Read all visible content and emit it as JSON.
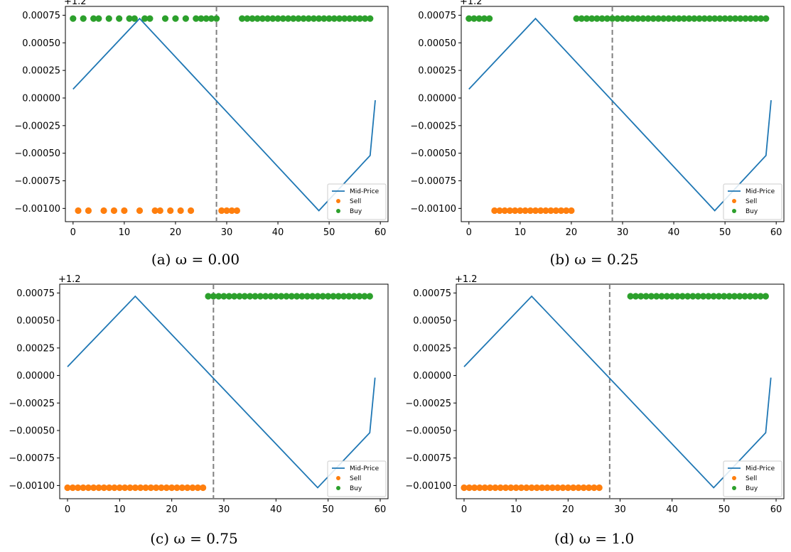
{
  "chart_data": [
    {
      "type": "line",
      "caption": "(a) ω = 0.00",
      "offset_label": "+1.2",
      "xlim": [
        -1.5,
        61.5
      ],
      "ylim": [
        -0.00112,
        0.00083
      ],
      "xticks": [
        0,
        10,
        20,
        30,
        40,
        50,
        60
      ],
      "yticks": [
        0.00075,
        0.0005,
        0.00025,
        0.0,
        -0.00025,
        -0.0005,
        -0.00075,
        -0.001
      ],
      "ytick_labels": [
        "0.00075",
        "0.00050",
        "0.00025",
        "0.00000",
        "−0.00025",
        "−0.00050",
        "−0.00075",
        "−0.00100"
      ],
      "vline_x": 28,
      "legend_location": "lower right",
      "series": [
        {
          "name": "Mid-Price",
          "kind": "line",
          "color": "#1f77b4",
          "x": [
            0,
            13,
            48,
            58,
            59
          ],
          "y": [
            8e-05,
            0.00072,
            -0.00102,
            -0.00052,
            -2e-05
          ]
        },
        {
          "name": "Sell",
          "kind": "scatter",
          "color": "#ff7f0e",
          "y_level": -0.00102,
          "x": [
            1,
            3,
            6,
            8,
            10,
            13,
            16,
            17,
            19,
            21,
            23,
            29,
            30,
            31,
            32
          ]
        },
        {
          "name": "Buy",
          "kind": "scatter",
          "color": "#2ca02c",
          "y_level": 0.00072,
          "x": [
            0,
            2,
            4,
            5,
            7,
            9,
            11,
            12,
            14,
            15,
            18,
            20,
            22,
            24,
            25,
            26,
            27,
            28,
            33,
            34,
            35,
            36,
            37,
            38,
            39,
            40,
            41,
            42,
            43,
            44,
            45,
            46,
            47,
            48,
            49,
            50,
            51,
            52,
            53,
            54,
            55,
            56,
            57,
            58
          ]
        }
      ]
    },
    {
      "type": "line",
      "caption": "(b) ω = 0.25",
      "offset_label": "+1.2",
      "xlim": [
        -1.5,
        61.5
      ],
      "ylim": [
        -0.00112,
        0.00083
      ],
      "xticks": [
        0,
        10,
        20,
        30,
        40,
        50,
        60
      ],
      "yticks": [
        0.00075,
        0.0005,
        0.00025,
        0.0,
        -0.00025,
        -0.0005,
        -0.00075,
        -0.001
      ],
      "ytick_labels": [
        "0.00075",
        "0.00050",
        "0.00025",
        "0.00000",
        "−0.00025",
        "−0.00050",
        "−0.00075",
        "−0.00100"
      ],
      "vline_x": 28,
      "legend_location": "lower right",
      "series": [
        {
          "name": "Mid-Price",
          "kind": "line",
          "color": "#1f77b4",
          "x": [
            0,
            13,
            48,
            58,
            59
          ],
          "y": [
            8e-05,
            0.00072,
            -0.00102,
            -0.00052,
            -2e-05
          ]
        },
        {
          "name": "Sell",
          "kind": "scatter",
          "color": "#ff7f0e",
          "y_level": -0.00102,
          "x": [
            5,
            6,
            7,
            8,
            9,
            10,
            11,
            12,
            13,
            14,
            15,
            16,
            17,
            18,
            19,
            20
          ]
        },
        {
          "name": "Buy",
          "kind": "scatter",
          "color": "#2ca02c",
          "y_level": 0.00072,
          "x": [
            0,
            1,
            2,
            3,
            4,
            21,
            22,
            23,
            24,
            25,
            26,
            27,
            28,
            29,
            30,
            31,
            32,
            33,
            34,
            35,
            36,
            37,
            38,
            39,
            40,
            41,
            42,
            43,
            44,
            45,
            46,
            47,
            48,
            49,
            50,
            51,
            52,
            53,
            54,
            55,
            56,
            57,
            58
          ]
        }
      ]
    },
    {
      "type": "line",
      "caption": "(c) ω = 0.75",
      "offset_label": "+1.2",
      "xlim": [
        -1.5,
        61.5
      ],
      "ylim": [
        -0.00112,
        0.00083
      ],
      "xticks": [
        0,
        10,
        20,
        30,
        40,
        50,
        60
      ],
      "yticks": [
        0.00075,
        0.0005,
        0.00025,
        0.0,
        -0.00025,
        -0.0005,
        -0.00075,
        -0.001
      ],
      "ytick_labels": [
        "0.00075",
        "0.00050",
        "0.00025",
        "0.00000",
        "−0.00025",
        "−0.00050",
        "−0.00075",
        "−0.00100"
      ],
      "vline_x": 28,
      "legend_location": "lower right",
      "series": [
        {
          "name": "Mid-Price",
          "kind": "line",
          "color": "#1f77b4",
          "x": [
            0,
            13,
            48,
            58,
            59
          ],
          "y": [
            8e-05,
            0.00072,
            -0.00102,
            -0.00052,
            -2e-05
          ]
        },
        {
          "name": "Sell",
          "kind": "scatter",
          "color": "#ff7f0e",
          "y_level": -0.00102,
          "x": [
            0,
            1,
            2,
            3,
            4,
            5,
            6,
            7,
            8,
            9,
            10,
            11,
            12,
            13,
            14,
            15,
            16,
            17,
            18,
            19,
            20,
            21,
            22,
            23,
            24,
            25,
            26
          ]
        },
        {
          "name": "Buy",
          "kind": "scatter",
          "color": "#2ca02c",
          "y_level": 0.00072,
          "x": [
            27,
            28,
            29,
            30,
            31,
            32,
            33,
            34,
            35,
            36,
            37,
            38,
            39,
            40,
            41,
            42,
            43,
            44,
            45,
            46,
            47,
            48,
            49,
            50,
            51,
            52,
            53,
            54,
            55,
            56,
            57,
            58
          ]
        }
      ]
    },
    {
      "type": "line",
      "caption": "(d) ω = 1.0",
      "offset_label": "+1.2",
      "xlim": [
        -1.5,
        61.5
      ],
      "ylim": [
        -0.00112,
        0.00083
      ],
      "xticks": [
        0,
        10,
        20,
        30,
        40,
        50,
        60
      ],
      "yticks": [
        0.00075,
        0.0005,
        0.00025,
        0.0,
        -0.00025,
        -0.0005,
        -0.00075,
        -0.001
      ],
      "ytick_labels": [
        "0.00075",
        "0.00050",
        "0.00025",
        "0.00000",
        "−0.00025",
        "−0.00050",
        "−0.00075",
        "−0.00100"
      ],
      "vline_x": 28,
      "legend_location": "lower right",
      "series": [
        {
          "name": "Mid-Price",
          "kind": "line",
          "color": "#1f77b4",
          "x": [
            0,
            13,
            48,
            58,
            59
          ],
          "y": [
            8e-05,
            0.00072,
            -0.00102,
            -0.00052,
            -2e-05
          ]
        },
        {
          "name": "Sell",
          "kind": "scatter",
          "color": "#ff7f0e",
          "y_level": -0.00102,
          "x": [
            0,
            1,
            2,
            3,
            4,
            5,
            6,
            7,
            8,
            9,
            10,
            11,
            12,
            13,
            14,
            15,
            16,
            17,
            18,
            19,
            20,
            21,
            22,
            23,
            24,
            25,
            26
          ]
        },
        {
          "name": "Buy",
          "kind": "scatter",
          "color": "#2ca02c",
          "y_level": 0.00072,
          "x": [
            32,
            33,
            34,
            35,
            36,
            37,
            38,
            39,
            40,
            41,
            42,
            43,
            44,
            45,
            46,
            47,
            48,
            49,
            50,
            51,
            52,
            53,
            54,
            55,
            56,
            57,
            58
          ]
        }
      ]
    }
  ]
}
